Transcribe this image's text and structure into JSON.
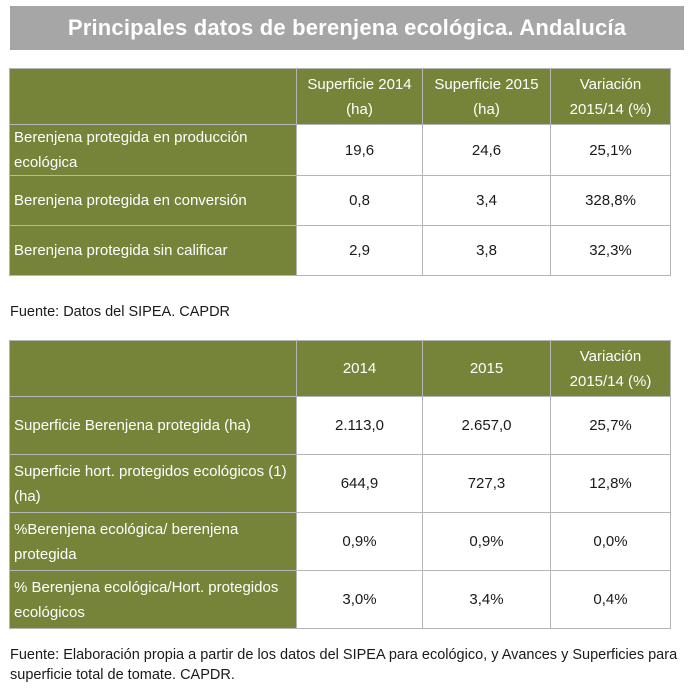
{
  "title": "Principales datos de berenjena ecológica. Andalucía",
  "table1": {
    "headers": [
      "",
      "Superficie 2014 (ha)",
      "Superficie 2015 (ha)",
      "Variación 2015/14 (%)"
    ],
    "rows": [
      {
        "label": "Berenjena protegida en producción ecológica",
        "v2014": "19,6",
        "v2015": "24,6",
        "var": "25,1%"
      },
      {
        "label": "Berenjena protegida en conversión",
        "v2014": "0,8",
        "v2015": "3,4",
        "var": "328,8%"
      },
      {
        "label": "Berenjena protegida sin calificar",
        "v2014": "2,9",
        "v2015": "3,8",
        "var": "32,3%"
      }
    ]
  },
  "source1": "Fuente: Datos del SIPEA. CAPDR",
  "table2": {
    "headers": [
      "",
      "2014",
      "2015",
      "Variación 2015/14 (%)"
    ],
    "rows": [
      {
        "label": "Superficie Berenjena protegida (ha)",
        "v2014": "2.113,0",
        "v2015": "2.657,0",
        "var": "25,7%"
      },
      {
        "label": "Superficie hort. protegidos ecológicos (1)(ha)",
        "v2014": "644,9",
        "v2015": "727,3",
        "var": "12,8%"
      },
      {
        "label": "%Berenjena ecológica/ berenjena protegida",
        "v2014": "0,9%",
        "v2015": "0,9%",
        "var": "0,0%"
      },
      {
        "label": "% Berenjena ecológica/Hort. protegidos ecológicos",
        "v2014": "3,0%",
        "v2015": "3,4%",
        "var": "0,4%"
      }
    ]
  },
  "source2": "Fuente: Elaboración propia a partir de los datos del SIPEA para ecológico, y Avances y Superficies para superficie total de tomate. CAPDR.",
  "colors": {
    "title_bg": "#a6a6a6",
    "header_green": "#76843a",
    "border": "#b5b5b5"
  }
}
